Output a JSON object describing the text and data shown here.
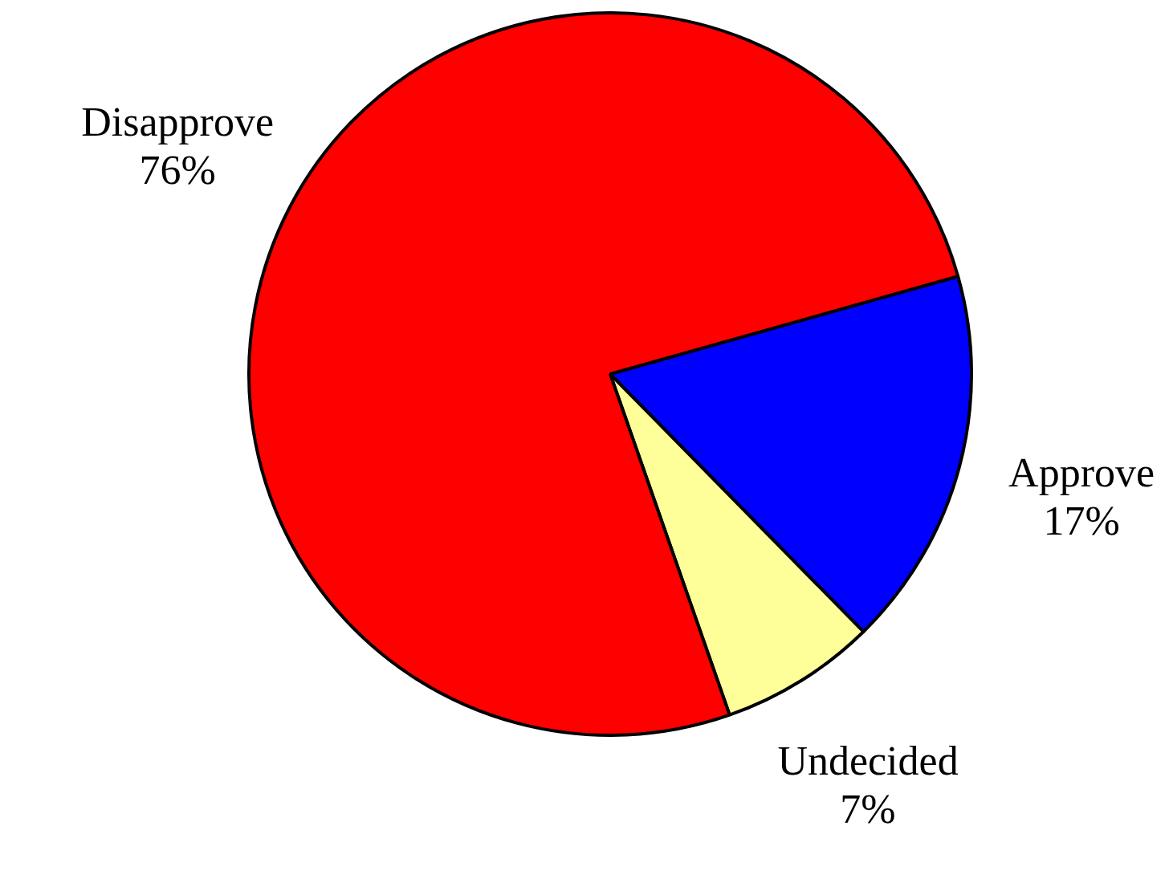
{
  "chart_data": {
    "type": "pie",
    "categories": [
      "Approve",
      "Undecided",
      "Disapprove"
    ],
    "values": [
      17,
      7,
      76
    ],
    "value_labels": [
      "17%",
      "7%",
      "76%"
    ],
    "colors": [
      "#0000ff",
      "#ffff99",
      "#ff0000"
    ]
  }
}
